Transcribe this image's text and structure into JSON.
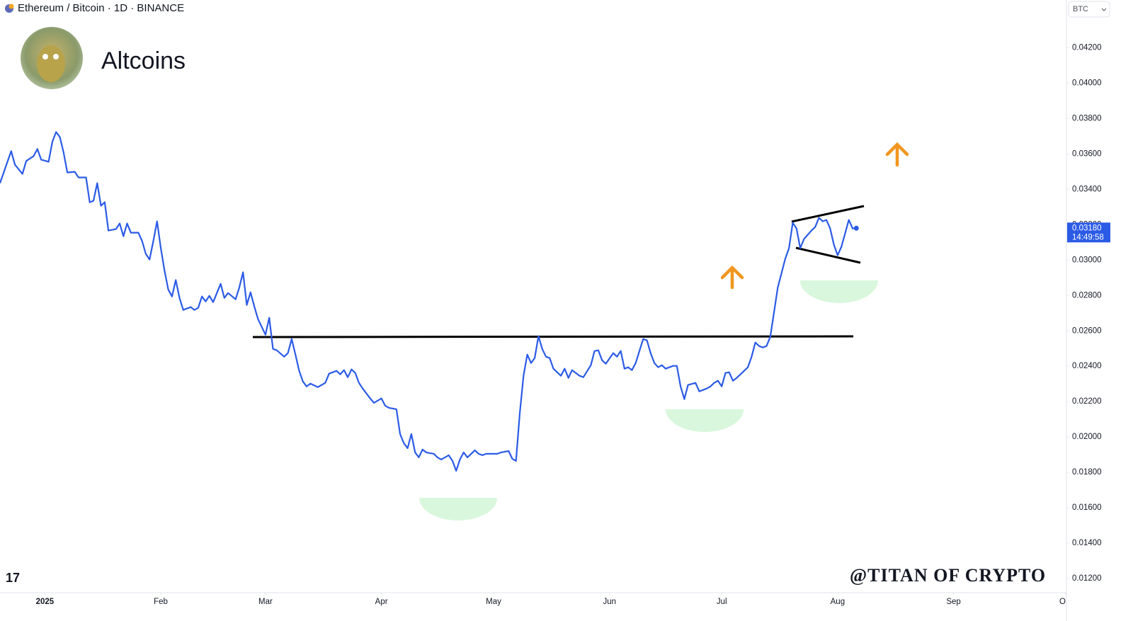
{
  "chart_data": {
    "type": "line",
    "title": "Ethereum / Bitcoin · 1D · BINANCE",
    "subtitle": "Altcoins",
    "watermark": "@TITAN OF CRYPTO",
    "currency": "BTC",
    "color": "#2b5be6",
    "x": [
      -12,
      -9,
      -8,
      -6,
      -5,
      -3,
      -2,
      -1,
      1,
      2,
      3,
      4,
      5,
      6,
      8,
      9,
      11,
      12,
      13,
      14,
      15,
      16,
      17,
      19,
      20,
      21,
      22,
      23,
      25,
      26,
      27,
      28,
      29,
      30,
      31,
      32,
      33,
      34,
      35,
      36,
      37,
      39,
      40,
      41,
      42,
      43,
      44,
      45,
      47,
      48,
      49,
      51,
      52,
      53,
      54,
      55,
      56,
      57,
      59,
      60,
      61,
      62,
      64,
      65,
      66,
      67,
      68,
      69,
      70,
      71,
      73,
      74,
      75,
      76,
      78,
      79,
      80,
      81,
      82,
      83,
      84,
      85,
      87,
      88,
      90,
      91,
      92,
      94,
      95,
      96,
      97,
      98,
      99,
      100,
      101,
      102,
      104,
      105,
      106,
      107,
      108,
      109,
      110,
      111,
      112,
      113,
      114,
      115,
      116,
      117,
      118,
      119,
      121,
      122,
      123,
      124,
      125,
      126,
      127,
      128,
      129,
      130,
      131,
      132,
      133,
      134,
      135,
      136,
      138,
      139,
      140,
      141,
      143,
      144,
      146,
      147,
      148,
      149,
      150,
      152,
      153,
      154,
      155,
      156,
      157,
      158,
      160,
      161,
      162,
      163,
      164,
      165,
      166,
      168,
      169,
      170,
      171,
      172,
      174,
      175,
      176,
      177,
      178,
      179,
      180,
      181,
      182,
      183,
      184,
      185,
      186,
      188,
      189,
      190,
      191,
      192,
      193,
      194,
      195,
      196,
      197,
      198,
      199,
      200,
      201,
      202,
      203,
      205,
      206,
      207,
      208,
      209,
      210,
      211,
      212,
      213,
      215,
      216,
      217
    ],
    "values": [
      0.03435,
      0.03616,
      0.03539,
      0.03487,
      0.0356,
      0.03588,
      0.03628,
      0.03568,
      0.03556,
      0.03668,
      0.03724,
      0.03696,
      0.03608,
      0.03495,
      0.03499,
      0.03467,
      0.03467,
      0.03327,
      0.03335,
      0.03435,
      0.03307,
      0.03327,
      0.03167,
      0.03175,
      0.03207,
      0.03135,
      0.03207,
      0.03155,
      0.03155,
      0.03107,
      0.03035,
      0.03003,
      0.03107,
      0.03219,
      0.03067,
      0.02939,
      0.02834,
      0.02794,
      0.02887,
      0.02786,
      0.02718,
      0.02734,
      0.02718,
      0.0273,
      0.02794,
      0.02766,
      0.02798,
      0.02762,
      0.02866,
      0.02786,
      0.02814,
      0.02778,
      0.02846,
      0.02931,
      0.02746,
      0.02818,
      0.02738,
      0.02666,
      0.02578,
      0.02674,
      0.02498,
      0.0249,
      0.02454,
      0.02474,
      0.02554,
      0.02466,
      0.02374,
      0.02314,
      0.02286,
      0.02302,
      0.02282,
      0.02294,
      0.02306,
      0.02358,
      0.02374,
      0.02354,
      0.02378,
      0.02338,
      0.02382,
      0.02362,
      0.02306,
      0.02274,
      0.02218,
      0.02193,
      0.02218,
      0.02177,
      0.02165,
      0.02157,
      0.02017,
      0.01965,
      0.01937,
      0.02017,
      0.01913,
      0.01885,
      0.01929,
      0.01913,
      0.01905,
      0.01885,
      0.01873,
      0.01885,
      0.01897,
      0.01865,
      0.01809,
      0.01873,
      0.01913,
      0.01885,
      0.01905,
      0.01925,
      0.01905,
      0.01897,
      0.01905,
      0.01905,
      0.01905,
      0.01913,
      0.01917,
      0.01921,
      0.01877,
      0.01865,
      0.02133,
      0.02346,
      0.02466,
      0.02418,
      0.02446,
      0.0257,
      0.02498,
      0.02454,
      0.02446,
      0.02386,
      0.02346,
      0.02386,
      0.02334,
      0.02378,
      0.02346,
      0.02338,
      0.02406,
      0.02486,
      0.0249,
      0.02434,
      0.02414,
      0.02474,
      0.02454,
      0.02486,
      0.02386,
      0.02394,
      0.02378,
      0.02418,
      0.02554,
      0.02546,
      0.02474,
      0.02418,
      0.02394,
      0.02406,
      0.02386,
      0.02402,
      0.02402,
      0.02286,
      0.02214,
      0.02294,
      0.02306,
      0.02258,
      0.02266,
      0.02274,
      0.02286,
      0.02306,
      0.02318,
      0.02286,
      0.02362,
      0.02366,
      0.02318,
      0.02334,
      0.02354,
      0.02394,
      0.02454,
      0.02534,
      0.02514,
      0.02506,
      0.02514,
      0.02566,
      0.02706,
      0.02846,
      0.02927,
      0.03007,
      0.03067,
      0.03211,
      0.03179,
      0.03067,
      0.03119,
      0.03167,
      0.03187,
      0.03239,
      0.03219,
      0.03227,
      0.03179,
      0.03087,
      0.03027,
      0.03075,
      0.03227,
      0.03179,
      0.0318
    ],
    "last_price": {
      "value": 0.0318,
      "label": "0.03180"
    },
    "countdown": "14:49:58",
    "xlim": [
      -12,
      273
    ],
    "xticks": [
      {
        "value": 0,
        "label": "2025"
      },
      {
        "value": 31,
        "label": "Feb"
      },
      {
        "value": 59,
        "label": "Mar"
      },
      {
        "value": 90,
        "label": "Apr"
      },
      {
        "value": 120,
        "label": "May"
      },
      {
        "value": 151,
        "label": "Jun"
      },
      {
        "value": 181,
        "label": "Jul"
      },
      {
        "value": 212,
        "label": "Aug"
      },
      {
        "value": 243,
        "label": "Sep"
      },
      {
        "value": 273,
        "label": "Oct"
      }
    ],
    "ylim": [
      0.0112,
      0.0447
    ],
    "yticks": [
      {
        "value": 0.012,
        "label": "0.01200"
      },
      {
        "value": 0.014,
        "label": "0.01400"
      },
      {
        "value": 0.016,
        "label": "0.01600"
      },
      {
        "value": 0.018,
        "label": "0.01800"
      },
      {
        "value": 0.02,
        "label": "0.02000"
      },
      {
        "value": 0.022,
        "label": "0.02200"
      },
      {
        "value": 0.024,
        "label": "0.02400"
      },
      {
        "value": 0.026,
        "label": "0.02600"
      },
      {
        "value": 0.028,
        "label": "0.02800"
      },
      {
        "value": 0.03,
        "label": "0.03000"
      },
      {
        "value": 0.032,
        "label": "0.03200"
      },
      {
        "value": 0.034,
        "label": "0.03400"
      },
      {
        "value": 0.036,
        "label": "0.03600"
      },
      {
        "value": 0.038,
        "label": "0.03800"
      },
      {
        "value": 0.04,
        "label": "0.04000"
      },
      {
        "value": 0.042,
        "label": "0.04200"
      }
    ],
    "grid": false
  }
}
